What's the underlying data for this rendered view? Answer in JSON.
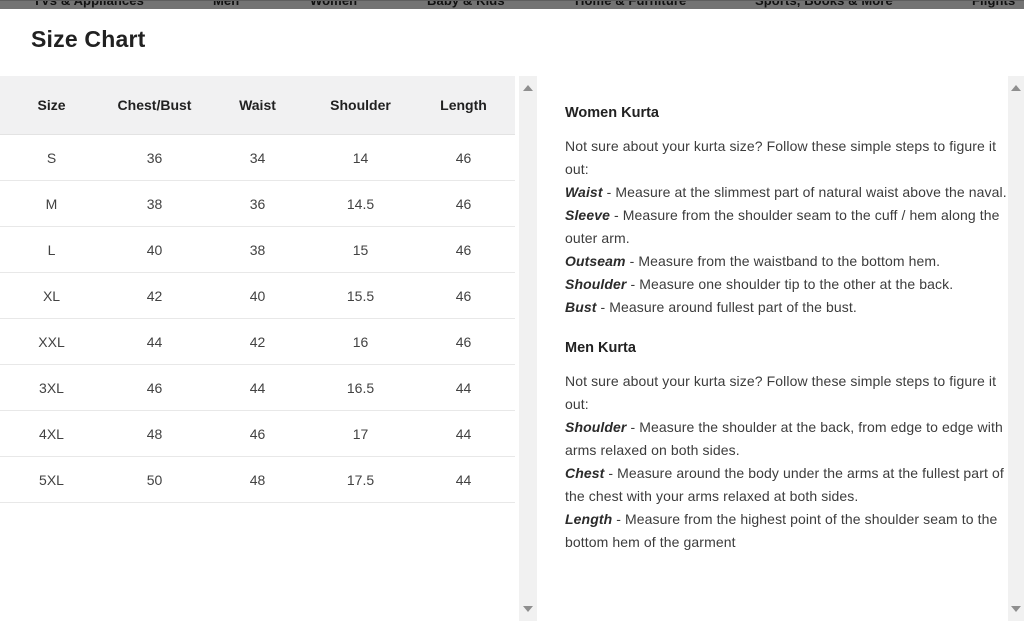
{
  "nav": {
    "items": [
      "TVs & Appliances",
      "Men",
      "Women",
      "Baby & Kids",
      "Home & Furniture",
      "Sports, Books & More",
      "Flights"
    ]
  },
  "header": {
    "title": "Size Chart"
  },
  "size_table": {
    "columns": [
      "Size",
      "Chest/Bust",
      "Waist",
      "Shoulder",
      "Length"
    ],
    "rows": [
      [
        "S",
        "36",
        "34",
        "14",
        "46"
      ],
      [
        "M",
        "38",
        "36",
        "14.5",
        "46"
      ],
      [
        "L",
        "40",
        "38",
        "15",
        "46"
      ],
      [
        "XL",
        "42",
        "40",
        "15.5",
        "46"
      ],
      [
        "XXL",
        "44",
        "42",
        "16",
        "46"
      ],
      [
        "3XL",
        "46",
        "44",
        "16.5",
        "44"
      ],
      [
        "4XL",
        "48",
        "46",
        "17",
        "44"
      ],
      [
        "5XL",
        "50",
        "48",
        "17.5",
        "44"
      ]
    ]
  },
  "guide": {
    "sections": [
      {
        "heading": "Women Kurta",
        "intro": "Not sure about your kurta size? Follow these simple steps to figure it out:",
        "steps": [
          {
            "term": "Waist",
            "text": "- Measure at the slimmest part of natural waist above the naval."
          },
          {
            "term": "Sleeve",
            "text": "- Measure from the shoulder seam to the cuff / hem along the outer arm."
          },
          {
            "term": "Outseam",
            "text": "- Measure from the waistband to the bottom hem."
          },
          {
            "term": "Shoulder",
            "text": "- Measure one shoulder tip to the other at the back."
          },
          {
            "term": "Bust",
            "text": "- Measure around fullest part of the bust."
          }
        ]
      },
      {
        "heading": "Men Kurta",
        "intro": "Not sure about your kurta size? Follow these simple steps to figure it out:",
        "steps": [
          {
            "term": "Shoulder",
            "text": "- Measure the shoulder at the back, from edge to edge with arms relaxed on both sides."
          },
          {
            "term": "Chest",
            "text": "- Measure around the body under the arms at the fullest part of the chest with your arms relaxed at both sides."
          },
          {
            "term": "Length",
            "text": "- Measure from the highest point of the shoulder seam to the bottom hem of the garment"
          }
        ]
      }
    ]
  },
  "icons": {
    "scroll_up": "triangle-up",
    "scroll_down": "triangle-down"
  },
  "colors": {
    "nav_strip_bg": "#737373",
    "table_header_bg": "#f1f1f2",
    "row_divider": "#e8e8e8",
    "scrollbar_track": "#f1f1f1",
    "scrollbar_arrow": "#8f8f8f",
    "text_primary": "#212121",
    "text_secondary": "#424242"
  }
}
